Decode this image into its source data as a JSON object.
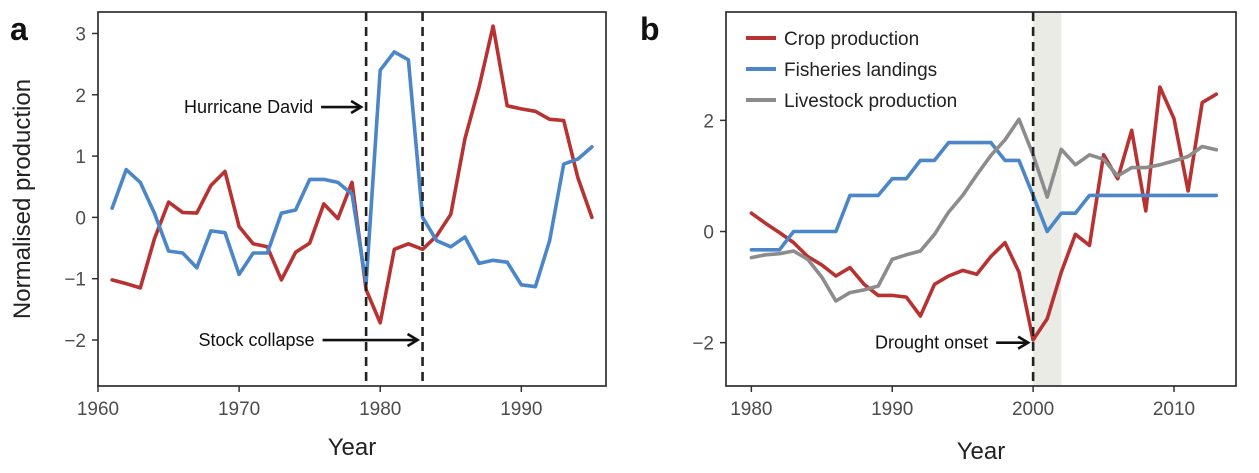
{
  "chart_data": [
    {
      "panel": "a",
      "type": "line",
      "xlabel": "Year",
      "ylabel": "Normalised production",
      "xlim": [
        1960,
        1996
      ],
      "ylim": [
        -2.75,
        3.35
      ],
      "xticks": [
        1960,
        1970,
        1980,
        1990
      ],
      "yticks": [
        -2,
        -1,
        0,
        1,
        2,
        3
      ],
      "ytick_labels": [
        "−2",
        "−1",
        "0",
        "1",
        "2",
        "3"
      ],
      "grid": false,
      "series": [
        {
          "color": "#b83232",
          "x": [
            1961,
            1962,
            1963,
            1964,
            1965,
            1966,
            1967,
            1968,
            1969,
            1970,
            1971,
            1972,
            1973,
            1974,
            1975,
            1976,
            1977,
            1978,
            1979,
            1980,
            1981,
            1982,
            1983,
            1984,
            1985,
            1986,
            1987,
            1988,
            1989,
            1990,
            1991,
            1992,
            1993,
            1994,
            1995
          ],
          "y": [
            -1.02,
            -1.08,
            -1.15,
            -0.35,
            0.25,
            0.08,
            0.07,
            0.52,
            0.75,
            -0.15,
            -0.43,
            -0.48,
            -1.02,
            -0.57,
            -0.42,
            0.22,
            -0.02,
            0.57,
            -1.18,
            -1.72,
            -0.52,
            -0.43,
            -0.52,
            -0.3,
            0.05,
            1.28,
            2.12,
            3.12,
            1.82,
            1.77,
            1.73,
            1.6,
            1.58,
            0.65,
            0.0
          ]
        },
        {
          "color": "#4a86c8",
          "x": [
            1961,
            1962,
            1963,
            1964,
            1965,
            1966,
            1967,
            1968,
            1969,
            1970,
            1971,
            1972,
            1973,
            1974,
            1975,
            1976,
            1977,
            1978,
            1979,
            1980,
            1981,
            1982,
            1983,
            1984,
            1985,
            1986,
            1987,
            1988,
            1989,
            1990,
            1991,
            1992,
            1993,
            1994,
            1995
          ],
          "y": [
            0.15,
            0.78,
            0.57,
            0.07,
            -0.55,
            -0.58,
            -0.82,
            -0.22,
            -0.25,
            -0.93,
            -0.58,
            -0.58,
            0.07,
            0.12,
            0.62,
            0.62,
            0.57,
            0.38,
            -1.08,
            2.4,
            2.7,
            2.57,
            0.0,
            -0.38,
            -0.48,
            -0.32,
            -0.75,
            -0.7,
            -0.73,
            -1.1,
            -1.13,
            -0.38,
            0.87,
            0.95,
            1.15
          ]
        }
      ],
      "vlines": [
        1979,
        1983
      ],
      "annotations": [
        {
          "text": "Hurricane David",
          "x": 1979,
          "y": 1.8
        },
        {
          "text": "Stock collapse",
          "x": 1983,
          "y": -2.0
        }
      ]
    },
    {
      "panel": "b",
      "type": "line",
      "xlabel": "Year",
      "ylabel": "",
      "xlim": [
        1978.2,
        2014.4
      ],
      "ylim": [
        -2.78,
        3.95
      ],
      "xticks": [
        1980,
        1990,
        2000,
        2010
      ],
      "yticks": [
        -2,
        0,
        2
      ],
      "ytick_labels": [
        "−2",
        "0",
        "2"
      ],
      "grid": false,
      "legend": "top-left",
      "shaded_region": [
        2000,
        2002
      ],
      "shaded_color": "#ebebe6",
      "vlines": [
        2000
      ],
      "annotations": [
        {
          "text": "Drought onset",
          "x": 2000,
          "y": -2.0
        }
      ],
      "series": [
        {
          "name": "Crop production",
          "color": "#b83232",
          "x": [
            1980,
            1981,
            1982,
            1983,
            1984,
            1985,
            1986,
            1987,
            1988,
            1989,
            1990,
            1991,
            1992,
            1993,
            1994,
            1995,
            1996,
            1997,
            1998,
            1999,
            2000,
            2001,
            2002,
            2003,
            2004,
            2005,
            2006,
            2007,
            2008,
            2009,
            2010,
            2011,
            2012,
            2013
          ],
          "y": [
            0.33,
            0.15,
            -0.02,
            -0.2,
            -0.45,
            -0.6,
            -0.8,
            -0.65,
            -0.95,
            -1.15,
            -1.15,
            -1.18,
            -1.52,
            -0.95,
            -0.8,
            -0.7,
            -0.77,
            -0.45,
            -0.2,
            -0.73,
            -1.95,
            -1.57,
            -0.73,
            -0.05,
            -0.25,
            1.38,
            0.95,
            1.82,
            0.37,
            2.6,
            2.03,
            0.73,
            2.32,
            2.47
          ]
        },
        {
          "name": "Fisheries landings",
          "color": "#4a86c8",
          "x": [
            1980,
            1981,
            1982,
            1983,
            1984,
            1985,
            1986,
            1987,
            1988,
            1989,
            1990,
            1991,
            1992,
            1993,
            1994,
            1995,
            1996,
            1997,
            1998,
            1999,
            2000,
            2001,
            2002,
            2003,
            2004,
            2005,
            2006,
            2007,
            2008,
            2009,
            2010,
            2011,
            2012,
            2013
          ],
          "y": [
            -0.33,
            -0.33,
            -0.33,
            0.0,
            0.0,
            0.0,
            0.0,
            0.65,
            0.65,
            0.65,
            0.95,
            0.95,
            1.28,
            1.28,
            1.6,
            1.6,
            1.6,
            1.6,
            1.28,
            1.28,
            0.65,
            0.0,
            0.33,
            0.33,
            0.65,
            0.65,
            0.65,
            0.65,
            0.65,
            0.65,
            0.65,
            0.65,
            0.65,
            0.65
          ]
        },
        {
          "name": "Livestock production",
          "color": "#8c8c8c",
          "x": [
            1980,
            1981,
            1982,
            1983,
            1984,
            1985,
            1986,
            1987,
            1988,
            1989,
            1990,
            1991,
            1992,
            1993,
            1994,
            1995,
            1996,
            1997,
            1998,
            1999,
            2000,
            2001,
            2002,
            2003,
            2004,
            2005,
            2006,
            2007,
            2008,
            2009,
            2010,
            2011,
            2012,
            2013
          ],
          "y": [
            -0.47,
            -0.42,
            -0.4,
            -0.35,
            -0.5,
            -0.82,
            -1.25,
            -1.1,
            -1.05,
            -0.98,
            -0.5,
            -0.42,
            -0.35,
            -0.05,
            0.35,
            0.65,
            1.02,
            1.37,
            1.65,
            2.02,
            1.38,
            0.62,
            1.48,
            1.2,
            1.38,
            1.3,
            1.0,
            1.15,
            1.15,
            1.2,
            1.27,
            1.35,
            1.53,
            1.47
          ]
        }
      ]
    }
  ]
}
